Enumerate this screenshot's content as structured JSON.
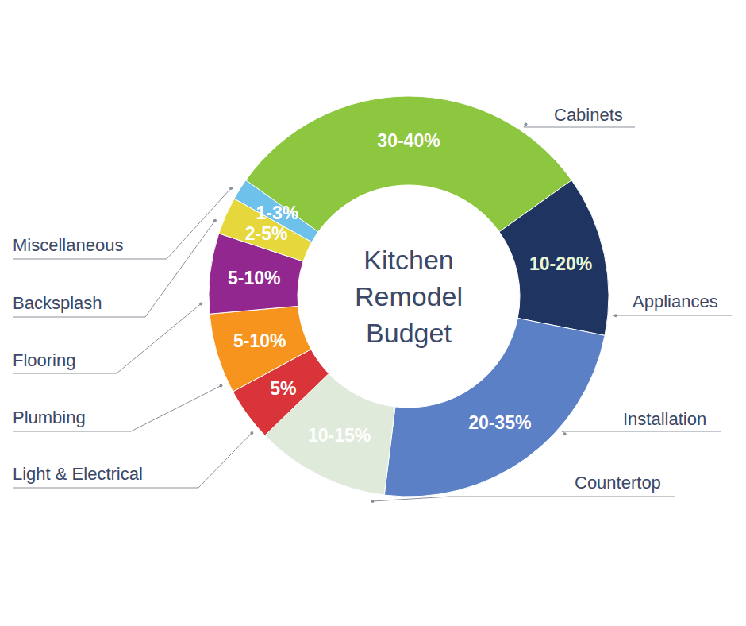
{
  "chart_data": {
    "type": "donut",
    "title": "Kitchen Remodel Budget",
    "categories": [
      "Cabinets",
      "Appliances",
      "Installation",
      "Countertop",
      "Light & Electrical",
      "Plumbing",
      "Flooring",
      "Backsplash",
      "Miscellaneous"
    ],
    "values": [
      35,
      15,
      27.5,
      12.5,
      5,
      7.5,
      7.5,
      3.5,
      2
    ],
    "value_labels": [
      "30-40%",
      "10-20%",
      "20-35%",
      "10-15%",
      "5%",
      "5-10%",
      "5-10%",
      "2-5%",
      "1-3%"
    ],
    "colors": [
      "#8dc63f",
      "#1f3461",
      "#5b80c6",
      "#dfeadb",
      "#d9343a",
      "#f7941d",
      "#92278f",
      "#e6d83c",
      "#6ec1ea"
    ],
    "data_labels": true
  }
}
